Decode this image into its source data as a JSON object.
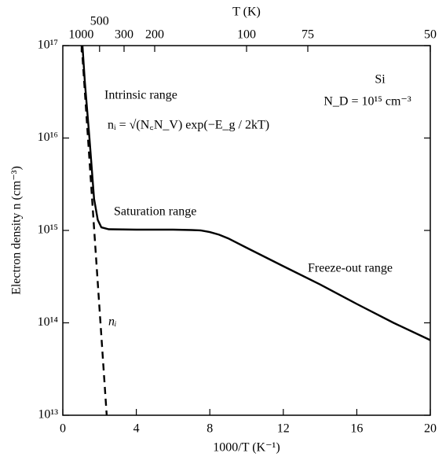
{
  "chart_data": {
    "type": "line",
    "xlabel": "1000/T (K⁻¹)",
    "ylabel": "Electron density n (cm⁻³)",
    "x2label": "T (K)",
    "xlim": [
      0,
      20
    ],
    "xticks": [
      0,
      4,
      8,
      12,
      16,
      20
    ],
    "ylim": [
      10000000000000.0,
      1e+17
    ],
    "log_y": true,
    "grid": false,
    "yticks": [
      {
        "value": 10000000000000.0,
        "label": "10¹³"
      },
      {
        "value": 100000000000000.0,
        "label": "10¹⁴"
      },
      {
        "value": 1000000000000000.0,
        "label": "10¹⁵"
      },
      {
        "value": 1e+16,
        "label": "10¹⁶"
      },
      {
        "value": 1e+17,
        "label": "10¹⁷"
      }
    ],
    "x2ticks": [
      1000,
      500,
      300,
      200,
      100,
      75,
      50
    ],
    "series": [
      {
        "color": "#000000",
        "dash": false,
        "x": [
          1.07,
          1.2,
          1.45,
          1.7,
          1.9,
          2.1,
          2.5,
          4,
          6,
          7,
          7.5,
          8,
          8.5,
          9,
          10,
          12,
          14,
          16,
          18,
          20
        ],
        "values": [
          1e+17,
          4e+16,
          1e+16,
          2200000000000000.0,
          1300000000000000.0,
          1080000000000000.0,
          1030000000000000.0,
          1020000000000000.0,
          1020000000000000.0,
          1010000000000000.0,
          1000000000000000.0,
          960000000000000.0,
          900000000000000.0,
          820000000000000.0,
          650000000000000.0,
          410000000000000.0,
          260000000000000.0,
          160000000000000.0,
          100000000000000.0,
          65000000000000.0
        ]
      },
      {
        "name": "nᵢ",
        "color": "#000000",
        "dash": true,
        "x": [
          1.03,
          2.39
        ],
        "values": [
          1e+17,
          10000000000000.0
        ]
      }
    ],
    "annotations": [
      "Intrinsic range",
      "nᵢ = √(N꜀N_V) exp(−E_g / 2kT)",
      "Saturation range",
      "Freeze-out range",
      "Si",
      "N_D = 10¹⁵ cm⁻³"
    ]
  }
}
